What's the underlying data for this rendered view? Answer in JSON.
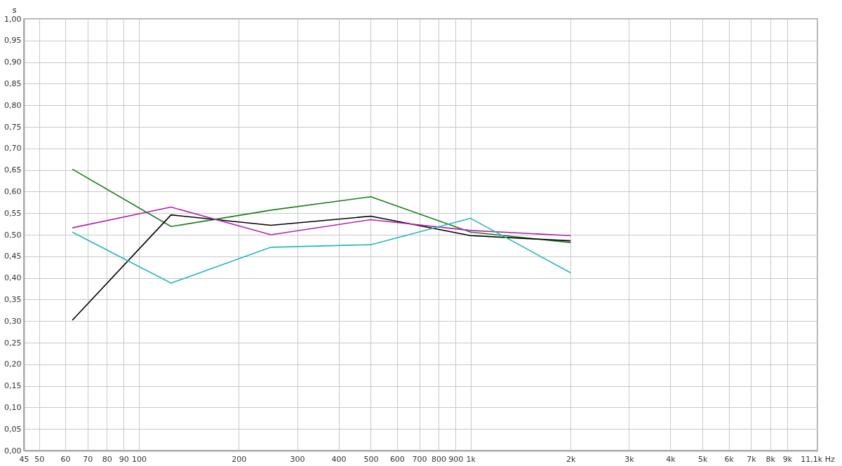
{
  "chart_data": {
    "type": "line",
    "ylabel": "s",
    "x": [
      63,
      125,
      250,
      500,
      1000,
      2000
    ],
    "series": [
      {
        "color": "#1a7f1a",
        "values": [
          0.652,
          0.519,
          0.557,
          0.588,
          0.506,
          0.482
        ]
      },
      {
        "color": "#000000",
        "values": [
          0.302,
          0.546,
          0.522,
          0.543,
          0.498,
          0.486
        ]
      },
      {
        "color": "#b422b4",
        "values": [
          0.516,
          0.564,
          0.5,
          0.535,
          0.51,
          0.498
        ]
      },
      {
        "color": "#26b8b8",
        "values": [
          0.506,
          0.388,
          0.471,
          0.477,
          0.538,
          0.412
        ]
      }
    ],
    "log": "x",
    "xlim": [
      45,
      11100
    ],
    "xticks": [
      45,
      50,
      60,
      70,
      80,
      90,
      100,
      200,
      300,
      400,
      500,
      600,
      700,
      800,
      900,
      {
        "value": 1000,
        "label": "1k"
      },
      {
        "value": 2000,
        "label": "2k"
      },
      {
        "value": 3000,
        "label": "3k"
      },
      {
        "value": 4000,
        "label": "4k"
      },
      {
        "value": 5000,
        "label": "5k"
      },
      {
        "value": 6000,
        "label": "6k"
      },
      {
        "value": 7000,
        "label": "7k"
      },
      {
        "value": 8000,
        "label": "8k"
      },
      {
        "value": 9000,
        "label": "9k"
      },
      {
        "value": 11100,
        "label": "11,1k Hz"
      }
    ],
    "ylim": [
      0,
      1
    ],
    "yticks": [
      {
        "value": 0,
        "label": "0,00"
      },
      {
        "value": 0.05,
        "label": "0,05"
      },
      {
        "value": 0.1,
        "label": "0,10"
      },
      {
        "value": 0.15,
        "label": "0,15"
      },
      {
        "value": 0.2,
        "label": "0,20"
      },
      {
        "value": 0.25,
        "label": "0,25"
      },
      {
        "value": 0.3,
        "label": "0,30"
      },
      {
        "value": 0.35,
        "label": "0,35"
      },
      {
        "value": 0.4,
        "label": "0,40"
      },
      {
        "value": 0.45,
        "label": "0,45"
      },
      {
        "value": 0.5,
        "label": "0,50"
      },
      {
        "value": 0.55,
        "label": "0,55"
      },
      {
        "value": 0.6,
        "label": "0,60"
      },
      {
        "value": 0.65,
        "label": "0,65"
      },
      {
        "value": 0.7,
        "label": "0,70"
      },
      {
        "value": 0.75,
        "label": "0,75"
      },
      {
        "value": 0.8,
        "label": "0,80"
      },
      {
        "value": 0.85,
        "label": "0,85"
      },
      {
        "value": 0.9,
        "label": "0,90"
      },
      {
        "value": 0.95,
        "label": "0,95"
      },
      {
        "value": 1,
        "label": "1,00"
      }
    ],
    "grid": true,
    "marker": "none",
    "line_style": "solid",
    "legend": false
  }
}
